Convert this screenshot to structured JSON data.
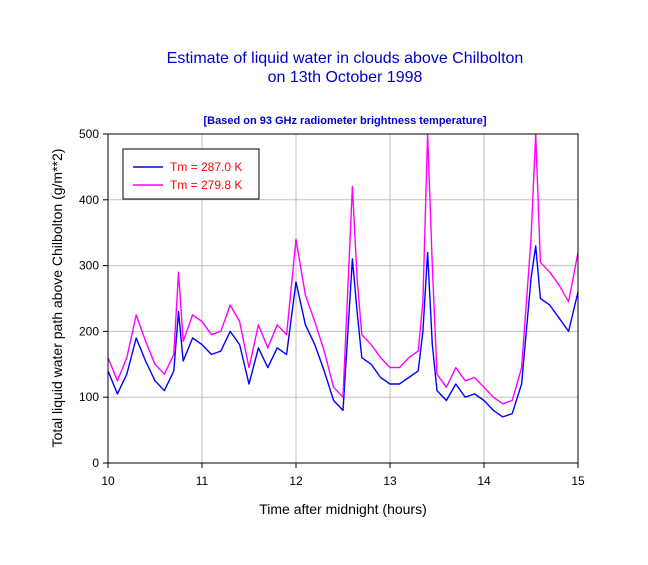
{
  "chart_data": {
    "type": "line",
    "title": "Estimate of liquid water in clouds above Chilbolton",
    "title_line2": "on 13th October 1998",
    "subtitle": "[Based on 93 GHz radiometer brightness temperature]",
    "xlabel": "Time after midnight  (hours)",
    "ylabel": "Total liquid water path above Chilbolton (g/m**2)",
    "xlim": [
      10,
      15
    ],
    "ylim": [
      0,
      500
    ],
    "xticks": [
      10,
      11,
      12,
      13,
      14,
      15
    ],
    "yticks": [
      0,
      100,
      200,
      300,
      400,
      500
    ],
    "x_tick_labels": [
      "10",
      "11",
      "12",
      "13",
      "14",
      "15"
    ],
    "y_tick_labels": [
      "0",
      "100",
      "200",
      "300",
      "400",
      "500"
    ],
    "grid": true,
    "legend_position": "top-left",
    "series": [
      {
        "name": "Tm = 287.0 K",
        "color": "#0000ff",
        "x": [
          10.0,
          10.1,
          10.2,
          10.3,
          10.4,
          10.5,
          10.6,
          10.7,
          10.75,
          10.8,
          10.9,
          11.0,
          11.1,
          11.2,
          11.3,
          11.4,
          11.5,
          11.6,
          11.7,
          11.8,
          11.9,
          12.0,
          12.1,
          12.2,
          12.3,
          12.4,
          12.5,
          12.6,
          12.65,
          12.7,
          12.8,
          12.9,
          13.0,
          13.1,
          13.2,
          13.3,
          13.35,
          13.4,
          13.45,
          13.5,
          13.6,
          13.7,
          13.8,
          13.9,
          14.0,
          14.1,
          14.2,
          14.3,
          14.4,
          14.5,
          14.55,
          14.6,
          14.7,
          14.8,
          14.9,
          15.0
        ],
        "y": [
          140,
          105,
          135,
          190,
          155,
          125,
          110,
          140,
          230,
          155,
          190,
          180,
          165,
          170,
          200,
          180,
          120,
          175,
          145,
          175,
          165,
          275,
          210,
          180,
          140,
          95,
          80,
          310,
          230,
          160,
          150,
          130,
          120,
          120,
          130,
          140,
          200,
          320,
          180,
          110,
          95,
          120,
          100,
          105,
          95,
          80,
          70,
          75,
          120,
          280,
          330,
          250,
          240,
          220,
          200,
          260
        ]
      },
      {
        "name": "Tm = 279.8 K",
        "color": "#ff00ff",
        "x": [
          10.0,
          10.1,
          10.2,
          10.3,
          10.4,
          10.5,
          10.6,
          10.7,
          10.75,
          10.8,
          10.9,
          11.0,
          11.1,
          11.2,
          11.3,
          11.4,
          11.5,
          11.6,
          11.7,
          11.8,
          11.9,
          12.0,
          12.1,
          12.2,
          12.3,
          12.4,
          12.5,
          12.6,
          12.65,
          12.7,
          12.8,
          12.9,
          13.0,
          13.1,
          13.2,
          13.3,
          13.35,
          13.4,
          13.45,
          13.5,
          13.6,
          13.7,
          13.8,
          13.9,
          14.0,
          14.1,
          14.2,
          14.3,
          14.4,
          14.5,
          14.55,
          14.6,
          14.7,
          14.8,
          14.9,
          15.0
        ],
        "y": [
          160,
          125,
          160,
          225,
          185,
          150,
          135,
          165,
          290,
          185,
          225,
          215,
          195,
          200,
          240,
          215,
          145,
          210,
          175,
          210,
          195,
          340,
          255,
          215,
          170,
          115,
          100,
          420,
          280,
          195,
          180,
          160,
          145,
          145,
          160,
          170,
          245,
          500,
          300,
          135,
          115,
          145,
          125,
          130,
          115,
          100,
          90,
          95,
          145,
          340,
          500,
          305,
          290,
          270,
          245,
          320
        ]
      }
    ]
  }
}
